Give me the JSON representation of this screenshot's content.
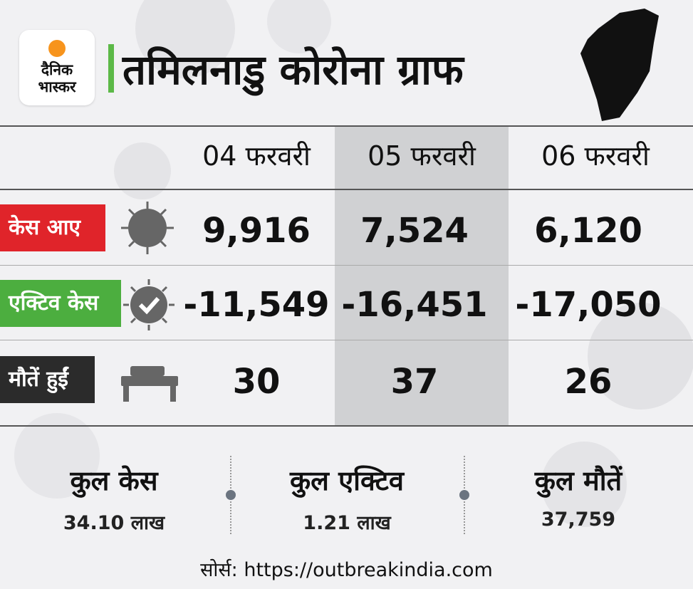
{
  "header": {
    "logo": [
      "दैनिक",
      "भास्कर"
    ],
    "title": "तमिलनाडु कोरोना ग्राफ"
  },
  "table": {
    "columns": [
      "04 फरवरी",
      "05 फरवरी",
      "06 फरवरी"
    ],
    "rows": [
      {
        "label": "केस आए",
        "values": [
          "9,916",
          "7,524",
          "6,120"
        ]
      },
      {
        "label": "एक्टिव केस",
        "values": [
          "-11,549",
          "-16,451",
          "-17,050"
        ]
      },
      {
        "label": "मौतें हुईं",
        "values": [
          "30",
          "37",
          "26"
        ]
      }
    ]
  },
  "totals": [
    {
      "label": "कुल केस",
      "value": "34.10  लाख"
    },
    {
      "label": "कुल एक्टिव",
      "value": "1.21 लाख"
    },
    {
      "label": "कुल मौतें",
      "value": "37,759"
    }
  ],
  "footer": {
    "source": "सोर्स: https://outbreakindia.com"
  }
}
